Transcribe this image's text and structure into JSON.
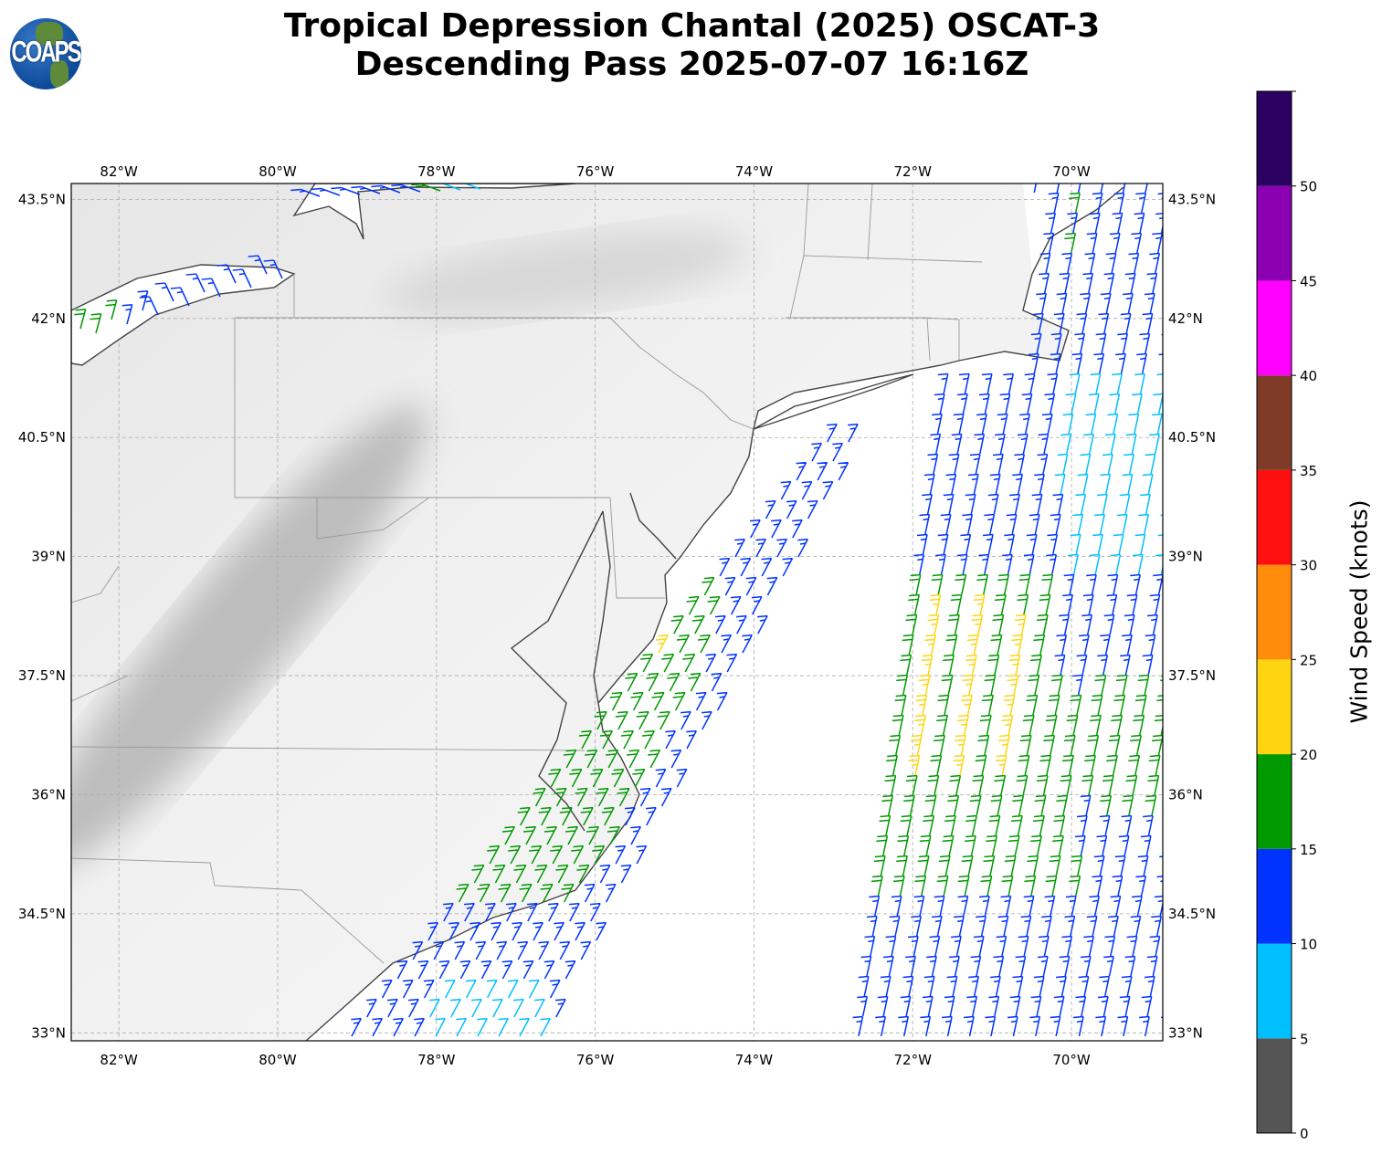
{
  "title": {
    "line1": "Tropical Depression Chantal (2025) OSCAT-3",
    "line2": "Descending Pass 2025-07-07 16:16Z"
  },
  "logo": {
    "text": "COAPS"
  },
  "map": {
    "lon_ticks": [
      {
        "value": -82,
        "label": "82°W"
      },
      {
        "value": -80,
        "label": "80°W"
      },
      {
        "value": -78,
        "label": "78°W"
      },
      {
        "value": -76,
        "label": "76°W"
      },
      {
        "value": -74,
        "label": "74°W"
      },
      {
        "value": -72,
        "label": "72°W"
      },
      {
        "value": -70,
        "label": "70°W"
      }
    ],
    "lat_ticks": [
      {
        "value": 43.5,
        "label": "43.5°N"
      },
      {
        "value": 42,
        "label": "42°N"
      },
      {
        "value": 40.5,
        "label": "40.5°N"
      },
      {
        "value": 39,
        "label": "39°N"
      },
      {
        "value": 37.5,
        "label": "37.5°N"
      },
      {
        "value": 36,
        "label": "36°N"
      },
      {
        "value": 34.5,
        "label": "34.5°N"
      },
      {
        "value": 33,
        "label": "33°N"
      }
    ],
    "lon_range": [
      -82.6,
      -68.85
    ],
    "lat_range": [
      32.9,
      43.7
    ],
    "gridlines": true
  },
  "colorbar": {
    "label": "Wind Speed (knots)",
    "ticks": [
      "0",
      "5",
      "10",
      "15",
      "20",
      "25",
      "30",
      "35",
      "40",
      "45",
      "50"
    ],
    "bins": [
      {
        "min": 0,
        "max": 5,
        "color": "#555555"
      },
      {
        "min": 5,
        "max": 10,
        "color": "#00bfff"
      },
      {
        "min": 10,
        "max": 15,
        "color": "#0033ff"
      },
      {
        "min": 15,
        "max": 20,
        "color": "#009900"
      },
      {
        "min": 20,
        "max": 25,
        "color": "#ffd511"
      },
      {
        "min": 25,
        "max": 30,
        "color": "#ff8c0a"
      },
      {
        "min": 30,
        "max": 35,
        "color": "#ff1010"
      },
      {
        "min": 35,
        "max": 40,
        "color": "#803a28"
      },
      {
        "min": 40,
        "max": 45,
        "color": "#ff00ff"
      },
      {
        "min": 45,
        "max": 50,
        "color": "#8b00b0"
      },
      {
        "min": 50,
        "max": 55,
        "color": "#2a0060"
      }
    ]
  }
}
